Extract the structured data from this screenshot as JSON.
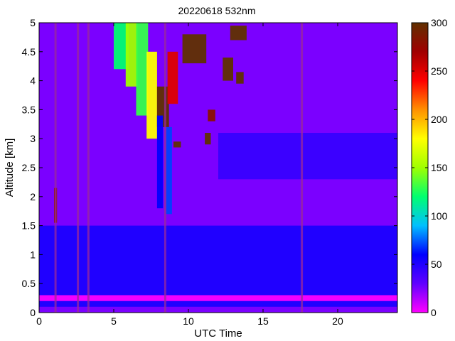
{
  "chart_data": {
    "type": "heatmap",
    "title": "20220618 532nm",
    "xlabel": "UTC Time",
    "ylabel": "Altitude [km]",
    "xlim": [
      0,
      24
    ],
    "ylim": [
      0,
      5
    ],
    "x_ticks": [
      0,
      5,
      10,
      15,
      20
    ],
    "y_ticks": [
      0,
      0.5,
      1,
      1.5,
      2,
      2.5,
      3,
      3.5,
      4,
      4.5,
      5
    ],
    "colorbar": {
      "range": [
        0,
        300
      ],
      "ticks": [
        0,
        50,
        100,
        150,
        200,
        250,
        300
      ],
      "colormap": [
        "#ff00ff",
        "#6000ff",
        "#0000ff",
        "#00c0ff",
        "#00ff70",
        "#a0ff00",
        "#ffff00",
        "#ff9000",
        "#ff0000",
        "#a00000",
        "#603000"
      ]
    },
    "background_value": 25,
    "boundary_layer_top_km": 1.5,
    "data_gaps_utc": [
      1.1,
      2.6,
      3.3,
      8.45,
      17.6
    ],
    "features": [
      {
        "type": "aerosol_layer",
        "utc": [
          0,
          24
        ],
        "altitude_km": [
          0.1,
          1.5
        ],
        "value": 55
      },
      {
        "type": "surface_layer",
        "utc": [
          0,
          24
        ],
        "altitude_km": [
          0.2,
          0.3
        ],
        "value": 0
      },
      {
        "type": "elevated_layer",
        "utc": [
          1.0,
          1.2
        ],
        "altitude_km": [
          1.55,
          2.15
        ],
        "value": 280
      },
      {
        "type": "cloud_streak",
        "utc": [
          5.0,
          6.0
        ],
        "altitude_km": [
          4.2,
          5.0
        ],
        "value": 120
      },
      {
        "type": "cloud_streak",
        "utc": [
          5.8,
          6.6
        ],
        "altitude_km": [
          3.9,
          5.0
        ],
        "value": 150
      },
      {
        "type": "cloud_streak",
        "utc": [
          6.5,
          7.3
        ],
        "altitude_km": [
          3.4,
          5.0
        ],
        "value": 130
      },
      {
        "type": "cloud_streak",
        "utc": [
          7.2,
          7.9
        ],
        "altitude_km": [
          3.0,
          4.5
        ],
        "value": 180
      },
      {
        "type": "cloud_core",
        "utc": [
          7.9,
          8.7
        ],
        "altitude_km": [
          3.2,
          3.9
        ],
        "value": 300
      },
      {
        "type": "fall_streak",
        "utc": [
          7.9,
          8.3
        ],
        "altitude_km": [
          1.8,
          3.4
        ],
        "value": 60
      },
      {
        "type": "fall_streak",
        "utc": [
          8.5,
          8.9
        ],
        "altitude_km": [
          1.7,
          3.2
        ],
        "value": 70
      },
      {
        "type": "cloud_patch",
        "utc": [
          8.6,
          9.3
        ],
        "altitude_km": [
          3.6,
          4.5
        ],
        "value": 250
      },
      {
        "type": "cloud_patch",
        "utc": [
          9.6,
          11.2
        ],
        "altitude_km": [
          4.3,
          4.8
        ],
        "value": 300
      },
      {
        "type": "cloud_patch",
        "utc": [
          11.1,
          11.5
        ],
        "altitude_km": [
          2.9,
          3.1
        ],
        "value": 300
      },
      {
        "type": "cloud_patch",
        "utc": [
          11.3,
          11.8
        ],
        "altitude_km": [
          3.3,
          3.5
        ],
        "value": 280
      },
      {
        "type": "cloud_patch",
        "utc": [
          12.3,
          13.0
        ],
        "altitude_km": [
          4.0,
          4.4
        ],
        "value": 300
      },
      {
        "type": "cloud_patch",
        "utc": [
          12.8,
          13.9
        ],
        "altitude_km": [
          4.7,
          4.95
        ],
        "value": 300
      },
      {
        "type": "cloud_patch",
        "utc": [
          13.2,
          13.7
        ],
        "altitude_km": [
          3.95,
          4.15
        ],
        "value": 300
      },
      {
        "type": "cloud_patch",
        "utc": [
          9.0,
          9.5
        ],
        "altitude_km": [
          2.85,
          2.95
        ],
        "value": 300
      },
      {
        "type": "thin_layer",
        "utc": [
          12.0,
          24.0
        ],
        "altitude_km": [
          2.3,
          3.1
        ],
        "value": 45
      }
    ]
  }
}
